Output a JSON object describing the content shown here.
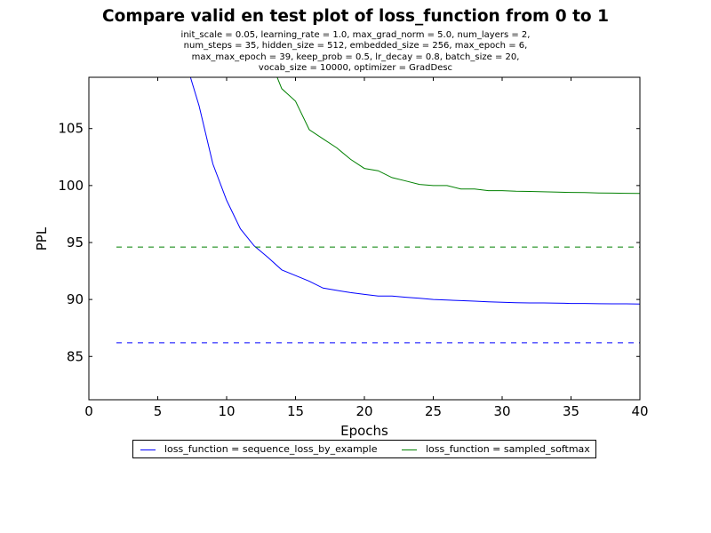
{
  "chart_data": {
    "type": "line",
    "title": "Compare valid en test plot of loss_function from 0 to 1",
    "subtitle_lines": [
      "init_scale = 0.05, learning_rate = 1.0, max_grad_norm = 5.0, num_layers = 2,",
      "num_steps = 35, hidden_size = 512, embedded_size = 256, max_epoch = 6,",
      "max_max_epoch = 39, keep_prob = 0.5, lr_decay = 0.8, batch_size = 20,",
      "vocab_size = 10000, optimizer = GradDesc"
    ],
    "xlabel": "Epochs",
    "ylabel": "PPL",
    "xlim": [
      0,
      40
    ],
    "ylim": [
      81.2,
      109.5
    ],
    "xticks": [
      0,
      5,
      10,
      15,
      20,
      25,
      30,
      35,
      40
    ],
    "yticks": [
      85,
      90,
      95,
      100,
      105
    ],
    "grid": false,
    "legend_position": "below",
    "series": [
      {
        "name": "loss_function = sequence_loss_by_example",
        "color": "#0000ff",
        "style": "solid",
        "x": [
          7,
          8,
          9,
          10,
          11,
          12,
          13,
          14,
          15,
          16,
          17,
          18,
          19,
          20,
          21,
          22,
          23,
          24,
          25,
          26,
          27,
          28,
          29,
          30,
          31,
          32,
          33,
          34,
          35,
          36,
          37,
          38,
          39,
          40
        ],
        "y": [
          111.0,
          107.0,
          101.9,
          98.7,
          96.2,
          94.7,
          93.7,
          92.6,
          92.1,
          91.6,
          91.0,
          90.8,
          90.6,
          90.45,
          90.3,
          90.3,
          90.2,
          90.1,
          90.0,
          89.95,
          89.9,
          89.85,
          89.8,
          89.75,
          89.72,
          89.7,
          89.7,
          89.68,
          89.65,
          89.65,
          89.63,
          89.62,
          89.62,
          89.6
        ]
      },
      {
        "name": "loss_function = sampled_softmax",
        "color": "#008000",
        "style": "solid",
        "x": [
          13,
          14,
          15,
          16,
          17,
          18,
          19,
          20,
          21,
          22,
          23,
          24,
          25,
          26,
          27,
          28,
          29,
          30,
          31,
          32,
          33,
          34,
          35,
          36,
          37,
          38,
          39,
          40
        ],
        "y": [
          111.5,
          108.5,
          107.4,
          104.9,
          104.1,
          103.3,
          102.3,
          101.5,
          101.3,
          100.7,
          100.4,
          100.1,
          100.0,
          100.0,
          99.7,
          99.7,
          99.55,
          99.55,
          99.5,
          99.48,
          99.45,
          99.42,
          99.4,
          99.38,
          99.35,
          99.33,
          99.32,
          99.3
        ]
      },
      {
        "name": "",
        "color": "#0000ff",
        "style": "dashed",
        "x": [
          2,
          40
        ],
        "y": [
          86.2,
          86.2
        ]
      },
      {
        "name": "",
        "color": "#008000",
        "style": "dashed",
        "x": [
          2,
          40
        ],
        "y": [
          94.6,
          94.6
        ]
      }
    ]
  }
}
